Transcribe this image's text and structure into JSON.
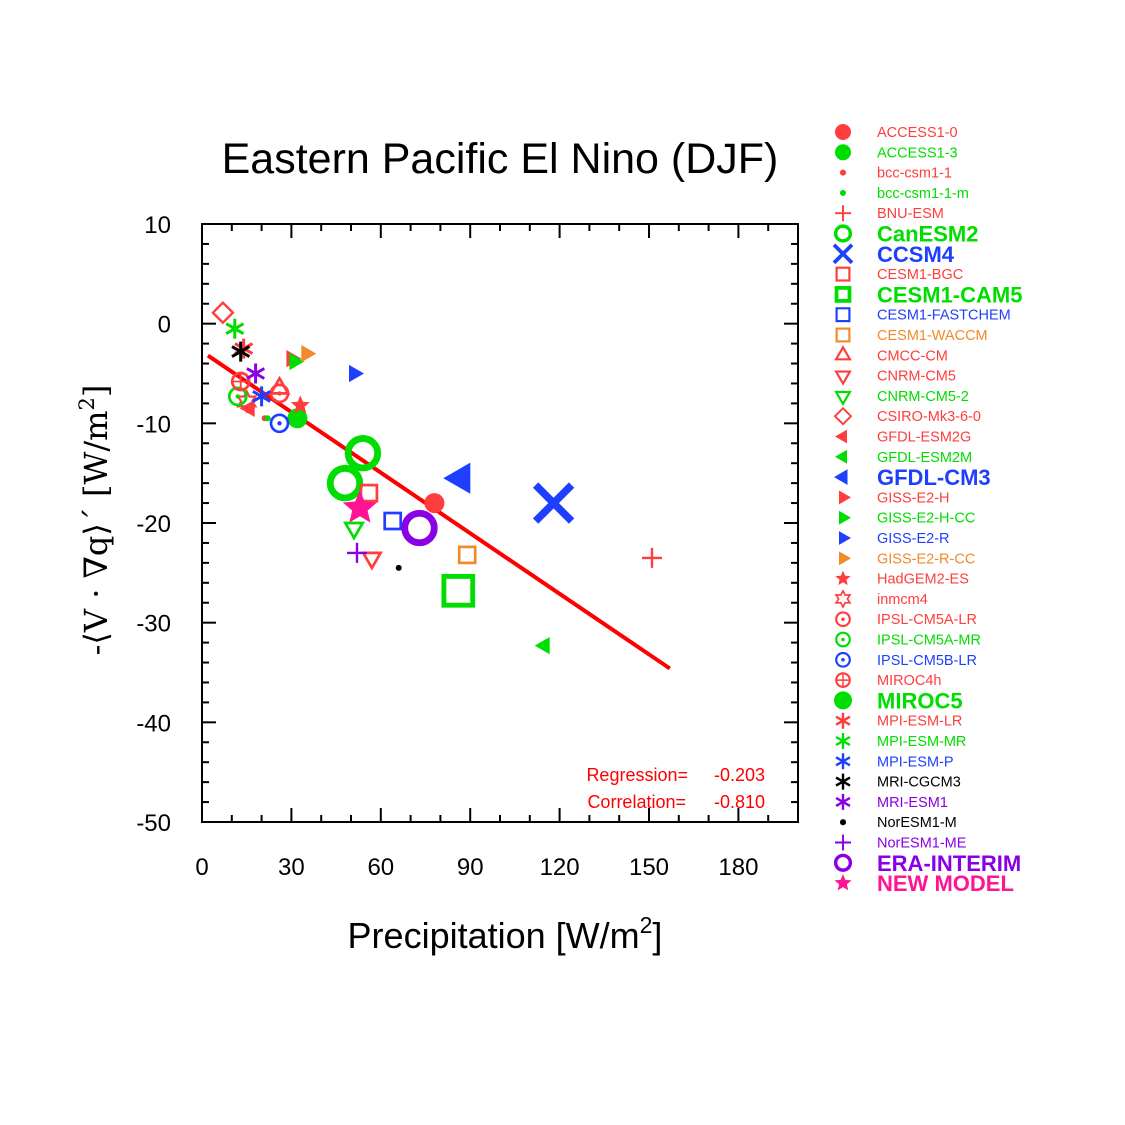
{
  "chart_data": {
    "type": "scatter",
    "title": "Eastern Pacific  El Nino (DJF)",
    "xlabel": {
      "main": "Precipitation [W/m",
      "sup": "2",
      "tail": "]"
    },
    "ylabel": {
      "main": "-⟨V · ∇q⟩´  [W/m",
      "sup": "2",
      "tail": "]"
    },
    "xlim": [
      0,
      200
    ],
    "ylim": [
      -50,
      10
    ],
    "xticks": [
      0,
      30,
      60,
      90,
      120,
      150,
      180
    ],
    "xtick_labels": [
      "0",
      "30",
      "60",
      "90",
      "120",
      "150",
      "180"
    ],
    "yticks": [
      10,
      0,
      -10,
      -20,
      -30,
      -40,
      -50
    ],
    "ytick_labels": [
      "10",
      "0",
      "-10",
      "-20",
      "-30",
      "-40",
      "-50"
    ],
    "grid": false,
    "regression_line": {
      "x": [
        2,
        157
      ],
      "y": [
        -3.2,
        -34.6
      ],
      "color": "#ff0000"
    },
    "stats": {
      "regression_label": "Regression=",
      "regression_value": "-0.203",
      "correlation_label": "Correlation=",
      "correlation_value": "-0.810"
    },
    "series": [
      {
        "name": "ACCESS1-0",
        "marker": "dot",
        "size": "m",
        "color": "#ff3d3d",
        "x": 78,
        "y": -18
      },
      {
        "name": "ACCESS1-3",
        "marker": "dot",
        "size": "m",
        "color": "#00dd00",
        "x": 32,
        "y": -9.5
      },
      {
        "name": "bcc-csm1-1",
        "marker": "dot",
        "size": "s",
        "color": "#ff3d3d",
        "x": 21,
        "y": -9.5
      },
      {
        "name": "bcc-csm1-1-m",
        "marker": "dot",
        "size": "s",
        "color": "#00dd00",
        "x": 22,
        "y": -9.5
      },
      {
        "name": "BNU-ESM",
        "marker": "plus",
        "size": "m",
        "color": "#ff3d3d",
        "x": 151,
        "y": -23.5
      },
      {
        "name": "CanESM2",
        "marker": "ring",
        "size": "l",
        "color": "#00dd00",
        "x": 48,
        "y": -16
      },
      {
        "name": "CCSM4",
        "marker": "x",
        "size": "l",
        "color": "#1f3fff",
        "x": 118,
        "y": -18
      },
      {
        "name": "CESM1-BGC",
        "marker": "square",
        "size": "m",
        "color": "#ff3d3d",
        "x": 56,
        "y": -17
      },
      {
        "name": "CESM1-CAM5",
        "marker": "square",
        "size": "l",
        "color": "#00dd00",
        "x": 86,
        "y": -26.8
      },
      {
        "name": "CESM1-FASTCHEM",
        "marker": "square",
        "size": "m",
        "color": "#1f3fff",
        "x": 64,
        "y": -19.8
      },
      {
        "name": "CESM1-WACCM",
        "marker": "square",
        "size": "m",
        "color": "#f08a2a",
        "x": 89,
        "y": -23.2
      },
      {
        "name": "CMCC-CM",
        "marker": "triangle",
        "size": "m",
        "color": "#ff3d3d",
        "x": 26,
        "y": -6.5
      },
      {
        "name": "CNRM-CM5",
        "marker": "triangle-down",
        "size": "m",
        "color": "#ff3d3d",
        "x": 57,
        "y": -23.5
      },
      {
        "name": "CNRM-CM5-2",
        "marker": "triangle-down",
        "size": "m",
        "color": "#00dd00",
        "x": 51,
        "y": -20.5
      },
      {
        "name": "CSIRO-Mk3-6-0",
        "marker": "diamond",
        "size": "m",
        "color": "#ff3d3d",
        "x": 7,
        "y": 1.1
      },
      {
        "name": "GFDL-ESM2G",
        "marker": "triangle-left",
        "size": "m",
        "color": "#ff3d3d",
        "x": 16,
        "y": -8.5
      },
      {
        "name": "GFDL-ESM2M",
        "marker": "triangle-left",
        "size": "m",
        "color": "#00dd00",
        "x": 115,
        "y": -32.3
      },
      {
        "name": "GFDL-CM3",
        "marker": "triangle-left",
        "size": "l",
        "color": "#1f3fff",
        "x": 87,
        "y": -15.5
      },
      {
        "name": "GISS-E2-H",
        "marker": "triangle-right",
        "size": "m",
        "color": "#ff3d3d",
        "x": 30,
        "y": -3.5
      },
      {
        "name": "GISS-E2-H-CC",
        "marker": "triangle-right",
        "size": "m",
        "color": "#00dd00",
        "x": 31,
        "y": -3.8
      },
      {
        "name": "GISS-E2-R",
        "marker": "triangle-right",
        "size": "m",
        "color": "#1f3fff",
        "x": 51,
        "y": -5
      },
      {
        "name": "GISS-E2-R-CC",
        "marker": "triangle-right",
        "size": "m",
        "color": "#f08a2a",
        "x": 35,
        "y": -3
      },
      {
        "name": "HadGEM2-ES",
        "marker": "star",
        "size": "m",
        "color": "#ff3d3d",
        "x": 33,
        "y": -8.2
      },
      {
        "name": "inmcm4",
        "marker": "star6",
        "size": "m",
        "color": "#ff3d3d",
        "x": 15,
        "y": -7.8
      },
      {
        "name": "IPSL-CM5A-LR",
        "marker": "ring-dot",
        "size": "m",
        "color": "#ff3d3d",
        "x": 26,
        "y": -7
      },
      {
        "name": "IPSL-CM5A-MR",
        "marker": "ring-dot",
        "size": "m",
        "color": "#00dd00",
        "x": 12,
        "y": -7.3
      },
      {
        "name": "IPSL-CM5B-LR",
        "marker": "ring-dot",
        "size": "m",
        "color": "#1f3fff",
        "x": 26,
        "y": -10
      },
      {
        "name": "MIROC4h",
        "marker": "ring-plus",
        "size": "m",
        "color": "#ff3d3d",
        "x": 13,
        "y": -5.8
      },
      {
        "name": "MIROC5",
        "marker": "ring",
        "size": "l",
        "color": "#00dd00",
        "x": 54,
        "y": -13
      },
      {
        "name": "MPI-ESM-LR",
        "marker": "asterisk",
        "size": "m",
        "color": "#ff3d3d",
        "x": 14,
        "y": -2.5
      },
      {
        "name": "MPI-ESM-MR",
        "marker": "asterisk",
        "size": "m",
        "color": "#00dd00",
        "x": 11,
        "y": -0.5
      },
      {
        "name": "MPI-ESM-P",
        "marker": "asterisk",
        "size": "m",
        "color": "#1f3fff",
        "x": 20,
        "y": -7.3
      },
      {
        "name": "MRI-CGCM3",
        "marker": "asterisk",
        "size": "m",
        "color": "#000000",
        "x": 13,
        "y": -2.8
      },
      {
        "name": "MRI-ESM1",
        "marker": "asterisk",
        "size": "m",
        "color": "#8a00e6",
        "x": 18,
        "y": -5
      },
      {
        "name": "NorESM1-M",
        "marker": "dot",
        "size": "xs",
        "color": "#000000",
        "x": 66,
        "y": -24.5
      },
      {
        "name": "NorESM1-ME",
        "marker": "plus",
        "size": "m",
        "color": "#8a00e6",
        "x": 52,
        "y": -23
      },
      {
        "name": "ERA-INTERIM",
        "marker": "ring",
        "size": "l",
        "color": "#8a00e6",
        "x": 73,
        "y": -20.5
      },
      {
        "name": "NEW MODEL",
        "marker": "star",
        "size": "l",
        "color": "#ff1493",
        "x": 53,
        "y": -18.5
      }
    ],
    "legend": {
      "placement": "right",
      "entries": [
        {
          "label": "ACCESS1-0",
          "marker": "dot",
          "color": "#ff3d3d",
          "bold": false
        },
        {
          "label": "ACCESS1-3",
          "marker": "dot",
          "color": "#00dd00",
          "bold": false
        },
        {
          "label": "bcc-csm1-1",
          "marker": "smalldot",
          "color": "#ff3d3d",
          "bold": false
        },
        {
          "label": "bcc-csm1-1-m",
          "marker": "smalldot",
          "color": "#00dd00",
          "bold": false
        },
        {
          "label": "BNU-ESM",
          "marker": "plus",
          "color": "#ff3d3d",
          "bold": false
        },
        {
          "label": "CanESM2",
          "marker": "ring",
          "color": "#00dd00",
          "bold": true
        },
        {
          "label": "CCSM4",
          "marker": "x",
          "color": "#1f3fff",
          "bold": true
        },
        {
          "label": "CESM1-BGC",
          "marker": "square",
          "color": "#ff3d3d",
          "bold": false
        },
        {
          "label": "CESM1-CAM5",
          "marker": "square-bold",
          "color": "#00dd00",
          "bold": true
        },
        {
          "label": "CESM1-FASTCHEM",
          "marker": "square",
          "color": "#1f3fff",
          "bold": false
        },
        {
          "label": "CESM1-WACCM",
          "marker": "square",
          "color": "#f08a2a",
          "bold": false
        },
        {
          "label": "CMCC-CM",
          "marker": "triangle",
          "color": "#ff3d3d",
          "bold": false
        },
        {
          "label": "CNRM-CM5",
          "marker": "triangle-down",
          "color": "#ff3d3d",
          "bold": false
        },
        {
          "label": "CNRM-CM5-2",
          "marker": "triangle-down",
          "color": "#00dd00",
          "bold": false
        },
        {
          "label": "CSIRO-Mk3-6-0",
          "marker": "diamond",
          "color": "#ff3d3d",
          "bold": false
        },
        {
          "label": "GFDL-ESM2G",
          "marker": "triangle-left",
          "color": "#ff3d3d",
          "bold": false
        },
        {
          "label": "GFDL-ESM2M",
          "marker": "triangle-left",
          "color": "#00dd00",
          "bold": false
        },
        {
          "label": "GFDL-CM3",
          "marker": "triangle-left",
          "color": "#1f3fff",
          "bold": true
        },
        {
          "label": "GISS-E2-H",
          "marker": "triangle-right",
          "color": "#ff3d3d",
          "bold": false
        },
        {
          "label": "GISS-E2-H-CC",
          "marker": "triangle-right",
          "color": "#00dd00",
          "bold": false
        },
        {
          "label": "GISS-E2-R",
          "marker": "triangle-right",
          "color": "#1f3fff",
          "bold": false
        },
        {
          "label": "GISS-E2-R-CC",
          "marker": "triangle-right",
          "color": "#f08a2a",
          "bold": false
        },
        {
          "label": "HadGEM2-ES",
          "marker": "star",
          "color": "#ff3d3d",
          "bold": false
        },
        {
          "label": "inmcm4",
          "marker": "star6",
          "color": "#ff3d3d",
          "bold": false
        },
        {
          "label": "IPSL-CM5A-LR",
          "marker": "ring-dot",
          "color": "#ff3d3d",
          "bold": false
        },
        {
          "label": "IPSL-CM5A-MR",
          "marker": "ring-dot",
          "color": "#00dd00",
          "bold": false
        },
        {
          "label": "IPSL-CM5B-LR",
          "marker": "ring-dot",
          "color": "#1f3fff",
          "bold": false
        },
        {
          "label": "MIROC4h",
          "marker": "ring-plus",
          "color": "#ff3d3d",
          "bold": false
        },
        {
          "label": "MIROC5",
          "marker": "dot",
          "color": "#00dd00",
          "bold": true
        },
        {
          "label": "MPI-ESM-LR",
          "marker": "asterisk",
          "color": "#ff3d3d",
          "bold": false
        },
        {
          "label": "MPI-ESM-MR",
          "marker": "asterisk",
          "color": "#00dd00",
          "bold": false
        },
        {
          "label": "MPI-ESM-P",
          "marker": "asterisk",
          "color": "#1f3fff",
          "bold": false
        },
        {
          "label": "MRI-CGCM3",
          "marker": "asterisk",
          "color": "#000000",
          "bold": false
        },
        {
          "label": "MRI-ESM1",
          "marker": "asterisk",
          "color": "#8a00e6",
          "bold": false
        },
        {
          "label": "NorESM1-M",
          "marker": "tinydot",
          "color": "#000000",
          "bold": false
        },
        {
          "label": "NorESM1-ME",
          "marker": "plus",
          "color": "#8a00e6",
          "bold": false
        },
        {
          "label": "ERA-INTERIM",
          "marker": "ring",
          "color": "#8a00e6",
          "bold": true
        },
        {
          "label": "NEW MODEL",
          "marker": "star",
          "color": "#ff1493",
          "bold": true
        }
      ]
    }
  }
}
